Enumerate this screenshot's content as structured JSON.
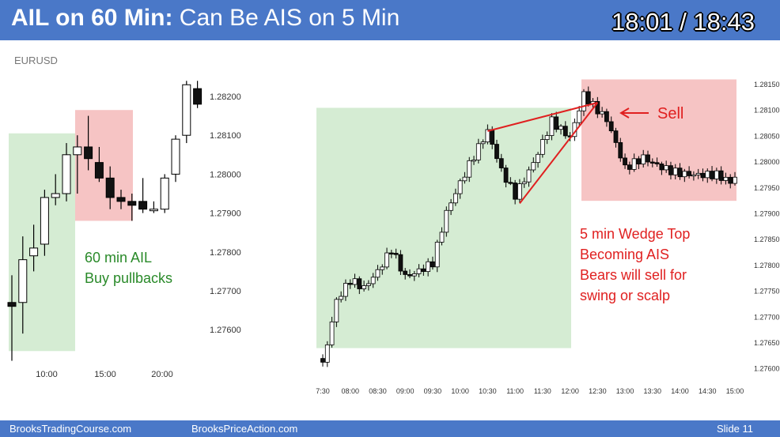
{
  "header": {
    "title_bold": "AIL on 60 Min:",
    "title_rest": " Can Be AIS on 5 Min",
    "timer": "18:01 / 18:43"
  },
  "symbol": "EURUSD",
  "footer": {
    "left": "BrooksTradingCourse.com",
    "center": "BrooksPriceAction.com",
    "right": "Slide  11"
  },
  "colors": {
    "header_bg": "#4a78c8",
    "bull_zone": "#d5ecd3",
    "bear_zone": "#f6c4c4",
    "green_text": "#2a8a2a",
    "red_text": "#e02020"
  },
  "chart_data": [
    {
      "type": "candlestick",
      "timeframe": "60 min",
      "x_ticks": [
        "10:00",
        "15:00",
        "20:00"
      ],
      "y_ticks": [
        "1.28200",
        "1.28100",
        "1.28000",
        "1.27900",
        "1.27800",
        "1.27700",
        "1.27600"
      ],
      "ylim": [
        1.2752,
        1.283
      ],
      "annotation_lines": [
        "60 min AIL",
        "Buy pullbacks"
      ],
      "candles": [
        {
          "o": 1.2767,
          "h": 1.2774,
          "l": 1.2752,
          "c": 1.2766
        },
        {
          "o": 1.2767,
          "h": 1.2784,
          "l": 1.2759,
          "c": 1.2778
        },
        {
          "o": 1.2779,
          "h": 1.2787,
          "l": 1.2775,
          "c": 1.2781
        },
        {
          "o": 1.2782,
          "h": 1.2796,
          "l": 1.2779,
          "c": 1.2794
        },
        {
          "o": 1.2794,
          "h": 1.28,
          "l": 1.2792,
          "c": 1.2795
        },
        {
          "o": 1.2795,
          "h": 1.2808,
          "l": 1.2793,
          "c": 1.2805
        },
        {
          "o": 1.2805,
          "h": 1.281,
          "l": 1.2795,
          "c": 1.2807
        },
        {
          "o": 1.2807,
          "h": 1.2815,
          "l": 1.2801,
          "c": 1.2804
        },
        {
          "o": 1.2803,
          "h": 1.2807,
          "l": 1.2798,
          "c": 1.2799
        },
        {
          "o": 1.2799,
          "h": 1.2802,
          "l": 1.2791,
          "c": 1.2794
        },
        {
          "o": 1.2794,
          "h": 1.2796,
          "l": 1.2791,
          "c": 1.2793
        },
        {
          "o": 1.2793,
          "h": 1.2795,
          "l": 1.2788,
          "c": 1.2792
        },
        {
          "o": 1.2793,
          "h": 1.2799,
          "l": 1.279,
          "c": 1.2791
        },
        {
          "o": 1.2791,
          "h": 1.2793,
          "l": 1.279,
          "c": 1.2791
        },
        {
          "o": 1.2791,
          "h": 1.28,
          "l": 1.279,
          "c": 1.2799
        },
        {
          "o": 1.28,
          "h": 1.281,
          "l": 1.2798,
          "c": 1.2809
        },
        {
          "o": 1.281,
          "h": 1.2824,
          "l": 1.2808,
          "c": 1.2823
        },
        {
          "o": 1.2822,
          "h": 1.2824,
          "l": 1.2817,
          "c": 1.2818
        }
      ]
    },
    {
      "type": "candlestick",
      "timeframe": "5 min",
      "x_ticks": [
        "7:30",
        "08:00",
        "08:30",
        "09:00",
        "09:30",
        "10:00",
        "10:30",
        "11:00",
        "11:30",
        "12:00",
        "12:30",
        "13:00",
        "13:30",
        "14:00",
        "14:30",
        "15:00"
      ],
      "y_ticks": [
        "1.28150",
        "1.28100",
        "1.28050",
        "1.28000",
        "1.27950",
        "1.27900",
        "1.27850",
        "1.27800",
        "1.27750",
        "1.27700",
        "1.27650",
        "1.27600"
      ],
      "ylim": [
        1.2757,
        1.2818
      ],
      "sell_label": "Sell",
      "annotation_lines": [
        "5 min Wedge Top",
        "Becoming AIS",
        "Bears will sell for",
        "swing or scalp"
      ],
      "wedge": [
        {
          "time": "10:30",
          "price": 1.2806
        },
        {
          "time": "12:30",
          "price": 1.28115
        },
        {
          "time": "11:05",
          "price": 1.2792
        }
      ],
      "bull_zone": {
        "from": "7:30",
        "to": "12:10",
        "high": 1.28105,
        "low": 1.2764
      },
      "bear_zone": {
        "from": "12:15",
        "to": "15:00",
        "high": 1.2816,
        "low": 1.27925
      }
    }
  ]
}
